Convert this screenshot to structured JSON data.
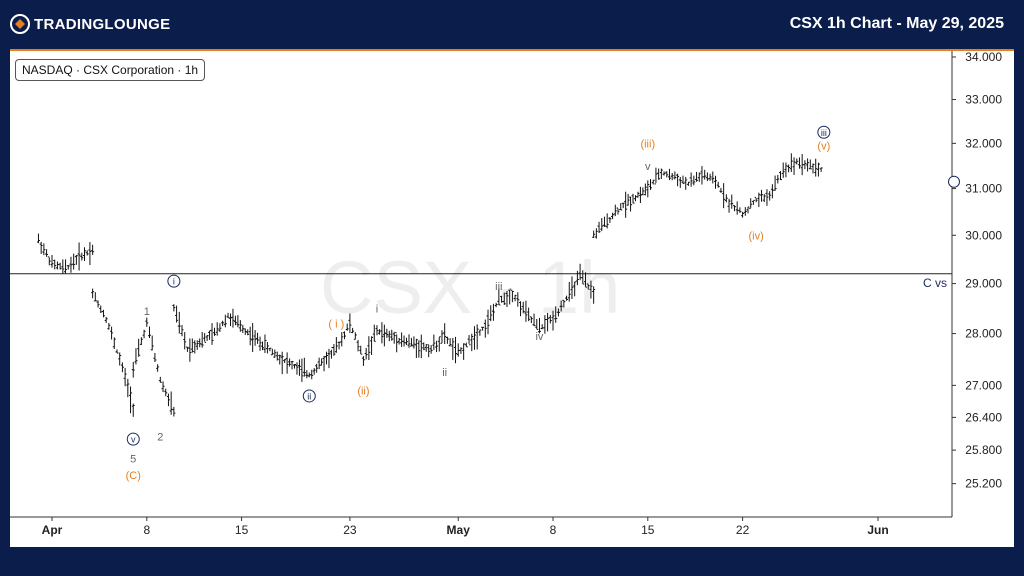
{
  "brand": {
    "name": "TradingLounge",
    "logo_text": "TRADINGLOUNGE",
    "accent": "#e67e22",
    "background": "#0b1d4a"
  },
  "header": {
    "title": "CSX 1h Chart - May 29, 2025"
  },
  "chart_data": {
    "type": "ohlc",
    "legend": "NASDAQ · CSX Corporation · 1h",
    "watermark": "CSX · 1h",
    "x": {
      "labels": [
        {
          "text": "Apr",
          "date": "2025-04-01",
          "bold": true
        },
        {
          "text": "8",
          "date": "2025-04-08"
        },
        {
          "text": "15",
          "date": "2025-04-15"
        },
        {
          "text": "23",
          "date": "2025-04-23"
        },
        {
          "text": "May",
          "date": "2025-05-01",
          "bold": true
        },
        {
          "text": "8",
          "date": "2025-05-08"
        },
        {
          "text": "15",
          "date": "2025-05-15"
        },
        {
          "text": "22",
          "date": "2025-05-22"
        },
        {
          "text": "Jun",
          "date": "2025-06-01",
          "bold": true
        }
      ]
    },
    "y": {
      "scale": "log",
      "range": [
        25.0,
        34.0
      ],
      "ticks": [
        "34.000",
        "33.000",
        "32.000",
        "31.000",
        "30.000",
        "29.000",
        "28.000",
        "27.000",
        "26.400",
        "25.800",
        "25.200"
      ]
    },
    "price_path": [
      [
        "2025-03-31",
        29.9
      ],
      [
        "2025-04-01",
        29.4
      ],
      [
        "2025-04-02",
        29.3
      ],
      [
        "2025-04-03",
        29.55
      ],
      [
        "2025-04-04",
        29.7
      ],
      [
        "2025-04-04",
        28.8
      ],
      [
        "2025-04-05",
        28.3
      ],
      [
        "2025-04-06",
        27.5
      ],
      [
        "2025-04-07",
        26.6
      ],
      [
        "2025-04-07",
        27.3
      ],
      [
        "2025-04-08",
        28.2
      ],
      [
        "2025-04-09",
        27.1
      ],
      [
        "2025-04-10",
        26.5
      ],
      [
        "2025-04-10",
        28.5
      ],
      [
        "2025-04-11",
        27.7
      ],
      [
        "2025-04-13",
        28.0
      ],
      [
        "2025-04-14",
        28.35
      ],
      [
        "2025-04-16",
        27.9
      ],
      [
        "2025-04-18",
        27.5
      ],
      [
        "2025-04-20",
        27.2
      ],
      [
        "2025-04-22",
        27.7
      ],
      [
        "2025-04-23",
        28.2
      ],
      [
        "2025-04-24",
        27.5
      ],
      [
        "2025-04-25",
        28.05
      ],
      [
        "2025-04-27",
        27.85
      ],
      [
        "2025-04-29",
        27.7
      ],
      [
        "2025-04-30",
        27.95
      ],
      [
        "2025-05-01",
        27.6
      ],
      [
        "2025-05-02",
        27.9
      ],
      [
        "2025-05-03",
        28.15
      ],
      [
        "2025-05-04",
        28.65
      ],
      [
        "2025-05-05",
        28.8
      ],
      [
        "2025-05-06",
        28.4
      ],
      [
        "2025-05-07",
        28.1
      ],
      [
        "2025-05-08",
        28.3
      ],
      [
        "2025-05-09",
        28.7
      ],
      [
        "2025-05-10",
        29.15
      ],
      [
        "2025-05-11",
        28.8
      ],
      [
        "2025-05-11",
        30.0
      ],
      [
        "2025-05-12",
        30.3
      ],
      [
        "2025-05-13",
        30.6
      ],
      [
        "2025-05-15",
        31.0
      ],
      [
        "2025-05-16",
        31.35
      ],
      [
        "2025-05-17",
        31.25
      ],
      [
        "2025-05-18",
        31.1
      ],
      [
        "2025-05-19",
        31.3
      ],
      [
        "2025-05-20",
        31.15
      ],
      [
        "2025-05-21",
        30.7
      ],
      [
        "2025-05-22",
        30.45
      ],
      [
        "2025-05-23",
        30.75
      ],
      [
        "2025-05-24",
        30.85
      ],
      [
        "2025-05-25",
        31.4
      ],
      [
        "2025-05-26",
        31.6
      ],
      [
        "2025-05-27",
        31.5
      ],
      [
        "2025-05-28",
        31.4
      ]
    ],
    "horizontal_line": {
      "price": 29.2,
      "label": "C vs"
    },
    "annotations": [
      {
        "text": "i",
        "date": "2025-04-10",
        "price": 29.05,
        "color": "#1a2a5e",
        "circled": true
      },
      {
        "text": "v",
        "date": "2025-04-07",
        "price": 26.0,
        "color": "#1a2a5e",
        "circled": true
      },
      {
        "text": "5",
        "date": "2025-04-07",
        "price": 25.65,
        "color": "#666666"
      },
      {
        "text": "(C)",
        "date": "2025-04-07",
        "price": 25.35,
        "color": "#e67e22"
      },
      {
        "text": "1",
        "date": "2025-04-08",
        "price": 28.45,
        "color": "#666666"
      },
      {
        "text": "2",
        "date": "2025-04-09",
        "price": 26.05,
        "color": "#666666"
      },
      {
        "text": "ii",
        "date": "2025-04-20",
        "price": 26.8,
        "color": "#1a2a5e",
        "circled": true
      },
      {
        "text": "( i )",
        "date": "2025-04-22",
        "price": 28.2,
        "color": "#e67e22"
      },
      {
        "text": "(ii)",
        "date": "2025-04-24",
        "price": 26.9,
        "color": "#e67e22"
      },
      {
        "text": "i",
        "date": "2025-04-25",
        "price": 28.5,
        "color": "#666666"
      },
      {
        "text": "ii",
        "date": "2025-04-30",
        "price": 27.25,
        "color": "#666666"
      },
      {
        "text": "iii",
        "date": "2025-05-04",
        "price": 28.95,
        "color": "#666666"
      },
      {
        "text": "iv",
        "date": "2025-05-07",
        "price": 27.95,
        "color": "#666666"
      },
      {
        "text": "(iii)",
        "date": "2025-05-15",
        "price": 32.0,
        "color": "#e67e22"
      },
      {
        "text": "v",
        "date": "2025-05-15",
        "price": 31.5,
        "color": "#666666"
      },
      {
        "text": "(iv)",
        "date": "2025-05-23",
        "price": 30.0,
        "color": "#e67e22"
      },
      {
        "text": "iii",
        "date": "2025-05-28",
        "price": 32.25,
        "color": "#1a2a5e",
        "circled": true
      },
      {
        "text": "(v)",
        "date": "2025-05-28",
        "price": 31.95,
        "color": "#e67e22"
      }
    ]
  }
}
